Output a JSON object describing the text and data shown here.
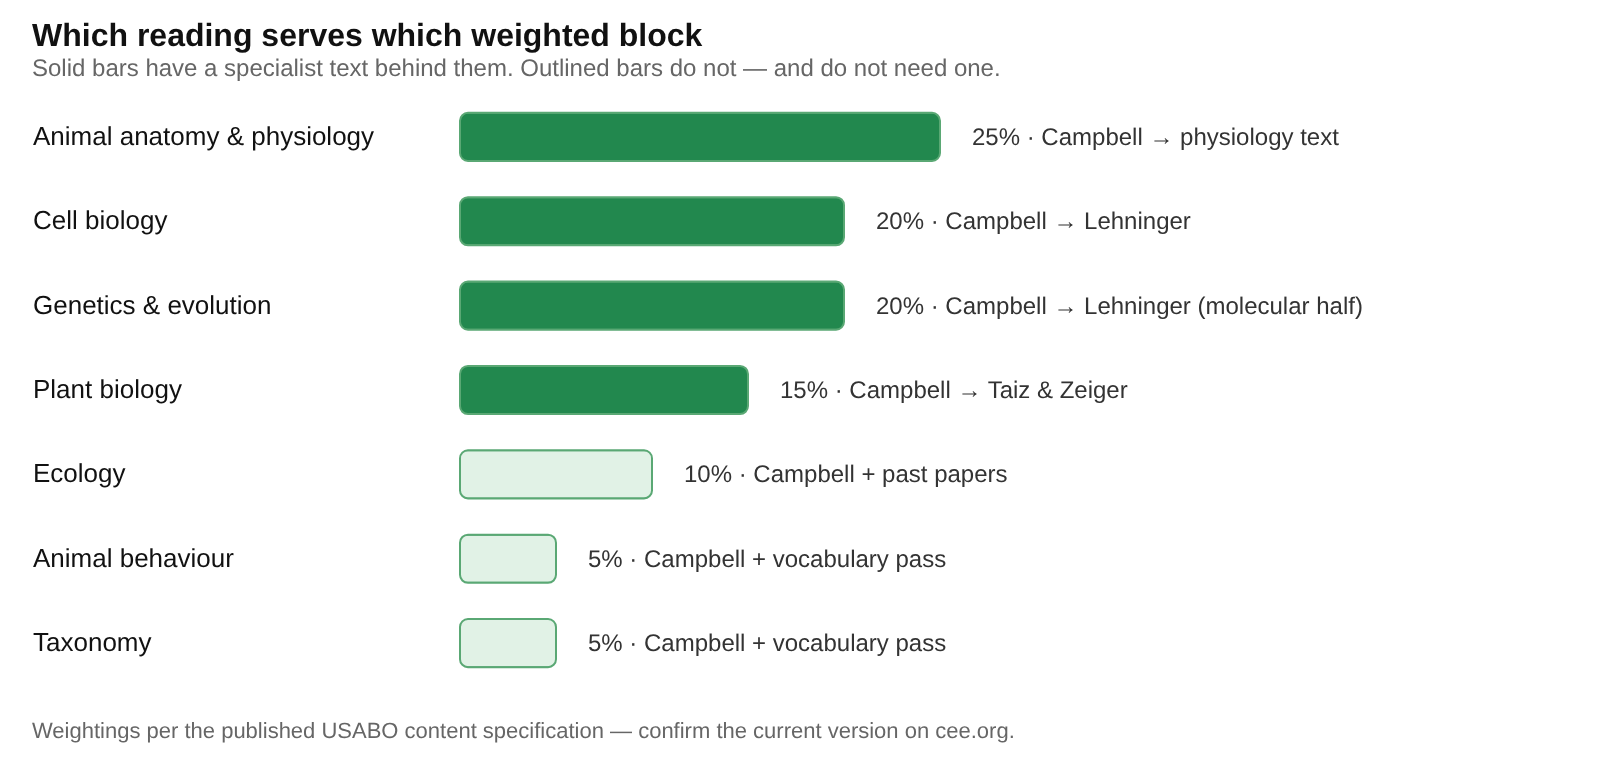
{
  "chart_data": {
    "type": "bar",
    "orientation": "horizontal",
    "title": "Which reading serves which weighted block",
    "subtitle": "Solid bars have a specialist text behind them. Outlined bars do not — and do not need one.",
    "categories": [
      "Animal anatomy & physiology",
      "Cell biology",
      "Genetics & evolution",
      "Plant biology",
      "Ecology",
      "Animal behaviour",
      "Taxonomy"
    ],
    "values": [
      25,
      20,
      20,
      15,
      10,
      5,
      5
    ],
    "colors": [
      "#22884e",
      "#22884e",
      "#22884e",
      "#22884e",
      "#e1f2e6",
      "#e1f2e6",
      "#e1f2e6"
    ],
    "value_labels": [
      "25% · Campbell → physiology text",
      "20% · Campbell → Lehninger",
      "20% · Campbell → Lehninger (molecular half)",
      "15% · Campbell → Taiz & Zeiger",
      "10% · Campbell + past papers",
      "5% · Campbell + vocabulary pass",
      "5% · Campbell + vocabulary pass"
    ],
    "annotations": [
      "Weightings per the published USABO content specification — confirm the current version on cee.org."
    ],
    "grid": false
  }
}
